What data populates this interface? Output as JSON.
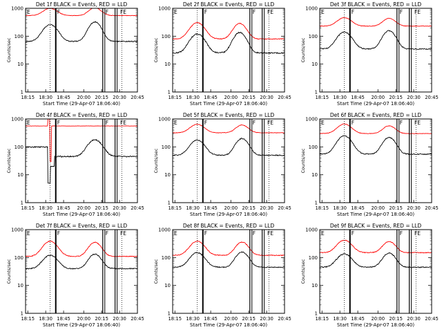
{
  "panel_titles": [
    "Det 1f BLACK = Events, RED = LLD",
    "Det 2f BLACK = Events, RED = LLD",
    "Det 3f BLACK = Events, RED = LLD",
    "Det 4f BLACK = Events, RED = LLD",
    "Det 5f BLACK = Events, RED = LLD",
    "Det 6f BLACK = Events, RED = LLD",
    "Det 7f BLACK = Events, RED = LLD",
    "Det 8f BLACK = Events, RED = LLD",
    "Det 9f BLACK = Events, RED = LLD"
  ],
  "xlabel": "Start Time (29-Apr-07 18:06:40)",
  "ylabel": "Counts/sec",
  "x_tick_labels": [
    "18:15",
    "18:30",
    "18:45",
    "20:00",
    "20:15",
    "20:30",
    "20:45"
  ],
  "y_tick_labels": [
    "1",
    "10",
    "100",
    "1000"
  ],
  "markers": {
    "E": "E",
    "F": "F",
    "FE": "FE"
  },
  "colors": {
    "events": "#000000",
    "lld": "#ff0000"
  },
  "chart_data": [
    {
      "type": "line",
      "title": "Det 1f BLACK = Events, RED = LLD",
      "xlabel": "Start Time (29-Apr-07 18:06:40)",
      "ylabel": "Counts/sec",
      "yscale": "log",
      "ylim": [
        1,
        1000
      ],
      "series": [
        {
          "color": "#000000",
          "shape": {
            "base": 65,
            "peaks": [
              {
                "x": 0.22,
                "amp": 3.0,
                "w": 0.08
              },
              {
                "x": 0.62,
                "amp": 4.0,
                "w": 0.07
              }
            ],
            "noise": 0.04
          }
        },
        {
          "color": "#ff0000",
          "shape": {
            "base": 550,
            "peaks": [
              {
                "x": 0.22,
                "amp": 0.8,
                "w": 0.08
              },
              {
                "x": 0.62,
                "amp": 0.9,
                "w": 0.07
              }
            ],
            "noise": 0.02
          }
        }
      ]
    },
    {
      "type": "line",
      "title": "Det 2f BLACK = Events, RED = LLD",
      "xlabel": "Start Time (29-Apr-07 18:06:40)",
      "ylabel": "Counts/sec",
      "yscale": "log",
      "ylim": [
        1,
        1000
      ],
      "series": [
        {
          "color": "#000000",
          "shape": {
            "base": 25,
            "peaks": [
              {
                "x": 0.22,
                "amp": 3.8,
                "w": 0.08
              },
              {
                "x": 0.6,
                "amp": 4.5,
                "w": 0.07
              }
            ],
            "noise": 0.05
          }
        },
        {
          "color": "#ff0000",
          "shape": {
            "base": 80,
            "peaks": [
              {
                "x": 0.22,
                "amp": 2.8,
                "w": 0.08
              },
              {
                "x": 0.6,
                "amp": 2.6,
                "w": 0.07
              }
            ],
            "noise": 0.03
          }
        }
      ]
    },
    {
      "type": "line",
      "title": "Det 3f BLACK = Events, RED = LLD",
      "xlabel": "Start Time (29-Apr-07 18:06:40)",
      "ylabel": "Counts/sec",
      "yscale": "log",
      "ylim": [
        1,
        1000
      ],
      "series": [
        {
          "color": "#000000",
          "shape": {
            "base": 35,
            "peaks": [
              {
                "x": 0.22,
                "amp": 3.0,
                "w": 0.08
              },
              {
                "x": 0.62,
                "amp": 3.5,
                "w": 0.07
              }
            ],
            "noise": 0.04
          }
        },
        {
          "color": "#ff0000",
          "shape": {
            "base": 230,
            "peaks": [
              {
                "x": 0.22,
                "amp": 1.0,
                "w": 0.08
              },
              {
                "x": 0.62,
                "amp": 0.9,
                "w": 0.07
              }
            ],
            "noise": 0.02
          }
        }
      ]
    },
    {
      "type": "line",
      "title": "Det 4f BLACK = Events, RED = LLD",
      "xlabel": "Start Time (29-Apr-07 18:06:40)",
      "ylabel": "Counts/sec",
      "yscale": "log",
      "ylim": [
        1,
        1000
      ],
      "series": [
        {
          "color": "#000000",
          "shape": {
            "base": 45,
            "peaks": [
              {
                "x": 0.62,
                "amp": 3.0,
                "w": 0.08
              }
            ],
            "noise": 0.05,
            "glitch": "dip"
          }
        },
        {
          "color": "#ff0000",
          "shape": {
            "base": 560,
            "peaks": [],
            "noise": 0.01,
            "glitch": "spike"
          }
        }
      ]
    },
    {
      "type": "line",
      "title": "Det 5f BLACK = Events, RED = LLD",
      "xlabel": "Start Time (29-Apr-07 18:06:40)",
      "ylabel": "Counts/sec",
      "yscale": "log",
      "ylim": [
        1,
        1000
      ],
      "series": [
        {
          "color": "#000000",
          "shape": {
            "base": 50,
            "peaks": [
              {
                "x": 0.22,
                "amp": 2.5,
                "w": 0.08
              },
              {
                "x": 0.62,
                "amp": 3.0,
                "w": 0.07
              }
            ],
            "noise": 0.04
          }
        },
        {
          "color": "#ff0000",
          "shape": {
            "base": 320,
            "peaks": [
              {
                "x": 0.22,
                "amp": 1.0,
                "w": 0.08
              },
              {
                "x": 0.62,
                "amp": 0.9,
                "w": 0.07
              }
            ],
            "noise": 0.02
          }
        }
      ]
    },
    {
      "type": "line",
      "title": "Det 6f BLACK = Events, RED = LLD",
      "xlabel": "Start Time (29-Apr-07 18:06:40)",
      "ylabel": "Counts/sec",
      "yscale": "log",
      "ylim": [
        1,
        1000
      ],
      "series": [
        {
          "color": "#000000",
          "shape": {
            "base": 55,
            "peaks": [
              {
                "x": 0.22,
                "amp": 3.5,
                "w": 0.08
              },
              {
                "x": 0.62,
                "amp": 3.0,
                "w": 0.07
              }
            ],
            "noise": 0.04
          }
        },
        {
          "color": "#ff0000",
          "shape": {
            "base": 300,
            "peaks": [
              {
                "x": 0.22,
                "amp": 1.2,
                "w": 0.08
              },
              {
                "x": 0.62,
                "amp": 0.9,
                "w": 0.07
              }
            ],
            "noise": 0.02
          }
        }
      ]
    },
    {
      "type": "line",
      "title": "Det 7f BLACK = Events, RED = LLD",
      "xlabel": "Start Time (29-Apr-07 18:06:40)",
      "ylabel": "Counts/sec",
      "yscale": "log",
      "ylim": [
        1,
        1000
      ],
      "series": [
        {
          "color": "#000000",
          "shape": {
            "base": 40,
            "peaks": [
              {
                "x": 0.22,
                "amp": 2.0,
                "w": 0.08
              },
              {
                "x": 0.62,
                "amp": 2.3,
                "w": 0.07
              }
            ],
            "noise": 0.04
          }
        },
        {
          "color": "#ff0000",
          "shape": {
            "base": 110,
            "peaks": [
              {
                "x": 0.22,
                "amp": 2.5,
                "w": 0.08
              },
              {
                "x": 0.62,
                "amp": 2.2,
                "w": 0.07
              }
            ],
            "noise": 0.03
          }
        }
      ]
    },
    {
      "type": "line",
      "title": "Det 8f BLACK = Events, RED = LLD",
      "xlabel": "Start Time (29-Apr-07 18:06:40)",
      "ylabel": "Counts/sec",
      "yscale": "log",
      "ylim": [
        1,
        1000
      ],
      "series": [
        {
          "color": "#000000",
          "shape": {
            "base": 45,
            "peaks": [
              {
                "x": 0.22,
                "amp": 2.3,
                "w": 0.08
              },
              {
                "x": 0.62,
                "amp": 2.5,
                "w": 0.07
              }
            ],
            "noise": 0.04
          }
        },
        {
          "color": "#ff0000",
          "shape": {
            "base": 120,
            "peaks": [
              {
                "x": 0.22,
                "amp": 2.2,
                "w": 0.08
              },
              {
                "x": 0.62,
                "amp": 2.0,
                "w": 0.07
              }
            ],
            "noise": 0.03
          }
        }
      ]
    },
    {
      "type": "line",
      "title": "Det 9f BLACK = Events, RED = LLD",
      "xlabel": "Start Time (29-Apr-07 18:06:40)",
      "ylabel": "Counts/sec",
      "yscale": "log",
      "ylim": [
        1,
        1000
      ],
      "series": [
        {
          "color": "#000000",
          "shape": {
            "base": 45,
            "peaks": [
              {
                "x": 0.22,
                "amp": 2.0,
                "w": 0.08
              },
              {
                "x": 0.62,
                "amp": 2.2,
                "w": 0.07
              }
            ],
            "noise": 0.04
          }
        },
        {
          "color": "#ff0000",
          "shape": {
            "base": 150,
            "peaks": [
              {
                "x": 0.22,
                "amp": 1.8,
                "w": 0.08
              },
              {
                "x": 0.62,
                "amp": 1.5,
                "w": 0.07
              }
            ],
            "noise": 0.03
          }
        }
      ]
    }
  ]
}
